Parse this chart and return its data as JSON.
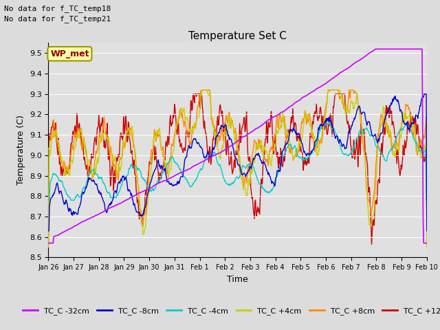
{
  "title": "Temperature Set C",
  "xlabel": "Time",
  "ylabel": "Temperature (C)",
  "ylim": [
    8.5,
    9.55
  ],
  "annotation1": "No data for f_TC_temp18",
  "annotation2": "No data for f_TC_temp21",
  "wp_met_label": "WP_met",
  "bg_color": "#dcdcdc",
  "plot_bg_color": "#e0e0e0",
  "grid_color": "#ffffff",
  "colors": {
    "TC_C -32cm": "#cc00ff",
    "TC_C -8cm": "#0000cc",
    "TC_C -4cm": "#00cccc",
    "TC_C +4cm": "#cccc00",
    "TC_C +8cm": "#ff8800",
    "TC_C +12cm": "#cc0000"
  },
  "xtick_labels": [
    "Jan 26",
    "Jan 27",
    "Jan 28",
    "Jan 29",
    "Jan 30",
    "Jan 31",
    "Feb 1",
    "Feb 2",
    "Feb 3",
    "Feb 4",
    "Feb 5",
    "Feb 6",
    "Feb 7",
    "Feb 8",
    "Feb 9",
    "Feb 10"
  ],
  "days": 15
}
